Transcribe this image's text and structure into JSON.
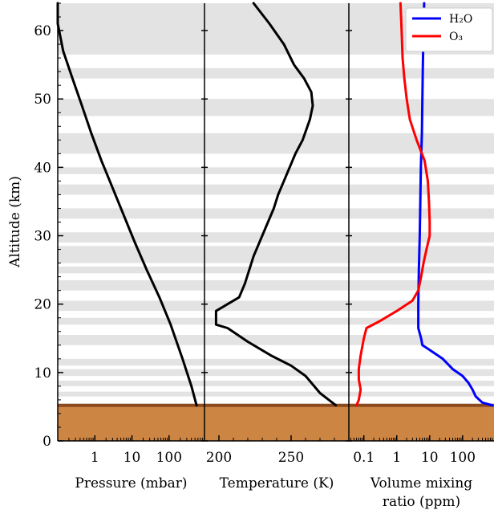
{
  "chart_data": {
    "type": "line",
    "ylabel": "Altitude (km)",
    "ylim": [
      0,
      64
    ],
    "yticks": [
      0,
      10,
      20,
      30,
      40,
      50,
      60
    ],
    "colors": {
      "gray_band": "#e3e3e3",
      "ground": "#cd8544",
      "ground_line": "#8b4a1e",
      "line_black": "#000000",
      "line_h2o": "#0000ff",
      "line_o3": "#ff0000"
    },
    "ground_altitude_km": 5.2,
    "gray_bands": [
      [
        56.5,
        64
      ],
      [
        53,
        54.5
      ],
      [
        47.5,
        50
      ],
      [
        42,
        45
      ],
      [
        39,
        40
      ],
      [
        36,
        37.5
      ],
      [
        32.5,
        34
      ],
      [
        29,
        30.5
      ],
      [
        26,
        28.5
      ],
      [
        24.5,
        25.5
      ],
      [
        22,
        23.5
      ],
      [
        19,
        20.5
      ],
      [
        17,
        18
      ],
      [
        14,
        15.5
      ],
      [
        11,
        12
      ],
      [
        9.5,
        10.5
      ],
      [
        8,
        8.8
      ],
      [
        6.5,
        7.2
      ]
    ],
    "panels": [
      {
        "id": "pressure",
        "xlabel": "Pressure (mbar)",
        "xscale": "log",
        "xlim": [
          0.1,
          900
        ],
        "xticks": [
          {
            "v": 1,
            "label": "1"
          },
          {
            "v": 10,
            "label": "10"
          },
          {
            "v": 100,
            "label": "100"
          }
        ],
        "series": [
          {
            "color": "#000000",
            "points": [
              [
                550,
                5.2
              ],
              [
                400,
                8
              ],
              [
                230,
                12
              ],
              [
                110,
                17
              ],
              [
                55,
                21
              ],
              [
                25,
                25
              ],
              [
                12,
                29
              ],
              [
                6,
                33
              ],
              [
                3,
                37
              ],
              [
                1.5,
                41
              ],
              [
                0.8,
                45
              ],
              [
                0.45,
                49
              ],
              [
                0.25,
                53
              ],
              [
                0.14,
                57
              ],
              [
                0.1,
                61
              ],
              [
                0.1,
                64
              ]
            ]
          }
        ]
      },
      {
        "id": "temperature",
        "xlabel": "Temperature (K)",
        "xscale": "linear",
        "xlim": [
          190,
          290
        ],
        "xticks": [
          {
            "v": 200,
            "label": "200"
          },
          {
            "v": 250,
            "label": "250"
          }
        ],
        "series": [
          {
            "color": "#000000",
            "points": [
              [
                281,
                5.2
              ],
              [
                270,
                7
              ],
              [
                260,
                9.5
              ],
              [
                250,
                11
              ],
              [
                236,
                12.5
              ],
              [
                220,
                14.5
              ],
              [
                206,
                16.5
              ],
              [
                198,
                17
              ],
              [
                198,
                19
              ],
              [
                206,
                20
              ],
              [
                214,
                21
              ],
              [
                218,
                23
              ],
              [
                224,
                27
              ],
              [
                232,
                31
              ],
              [
                238,
                34
              ],
              [
                241,
                36
              ],
              [
                247,
                39
              ],
              [
                253,
                42
              ],
              [
                258,
                44
              ],
              [
                263,
                47
              ],
              [
                265,
                49
              ],
              [
                264,
                51
              ],
              [
                259,
                53
              ],
              [
                252,
                55
              ],
              [
                245,
                58
              ],
              [
                235,
                61
              ],
              [
                224,
                64
              ]
            ]
          }
        ]
      },
      {
        "id": "mixing",
        "xlabel": "Volume mixing",
        "xlabel2": "ratio (ppm)",
        "xscale": "log",
        "xlim": [
          0.035,
          900
        ],
        "xticks": [
          {
            "v": 0.1,
            "label": "0.1"
          },
          {
            "v": 1,
            "label": "1"
          },
          {
            "v": 10,
            "label": "10"
          },
          {
            "v": 100,
            "label": "100"
          }
        ],
        "legend_position": "top-right",
        "series": [
          {
            "name": "H₂O",
            "color": "#0000ff",
            "points": [
              [
                800,
                5.2
              ],
              [
                400,
                5.6
              ],
              [
                250,
                6.5
              ],
              [
                200,
                7.5
              ],
              [
                150,
                8.5
              ],
              [
                100,
                9.5
              ],
              [
                50,
                10.5
              ],
              [
                25,
                12
              ],
              [
                10,
                13.3
              ],
              [
                6,
                14
              ],
              [
                5.5,
                15
              ],
              [
                4.5,
                16.5
              ],
              [
                4.5,
                20
              ],
              [
                4.7,
                25
              ],
              [
                5,
                30
              ],
              [
                5.2,
                35
              ],
              [
                5.4,
                40
              ],
              [
                5.8,
                45
              ],
              [
                6,
                50
              ],
              [
                6.2,
                55
              ],
              [
                6.5,
                60
              ],
              [
                6.8,
                64
              ]
            ]
          },
          {
            "name": "O₃",
            "color": "#ff0000",
            "points": [
              [
                0.06,
                5.2
              ],
              [
                0.07,
                6
              ],
              [
                0.08,
                7.5
              ],
              [
                0.07,
                9
              ],
              [
                0.07,
                10.5
              ],
              [
                0.08,
                12.5
              ],
              [
                0.1,
                15
              ],
              [
                0.12,
                16.5
              ],
              [
                0.3,
                17.5
              ],
              [
                1,
                19
              ],
              [
                3,
                20.5
              ],
              [
                4.5,
                22
              ],
              [
                5.5,
                24
              ],
              [
                6.5,
                26
              ],
              [
                8,
                28
              ],
              [
                10,
                30
              ],
              [
                10,
                32
              ],
              [
                9.5,
                35
              ],
              [
                8.8,
                38
              ],
              [
                7,
                41
              ],
              [
                4,
                44
              ],
              [
                2.5,
                47
              ],
              [
                2,
                50
              ],
              [
                1.7,
                53
              ],
              [
                1.5,
                56
              ],
              [
                1.4,
                60
              ],
              [
                1.3,
                64
              ]
            ]
          }
        ]
      }
    ]
  }
}
